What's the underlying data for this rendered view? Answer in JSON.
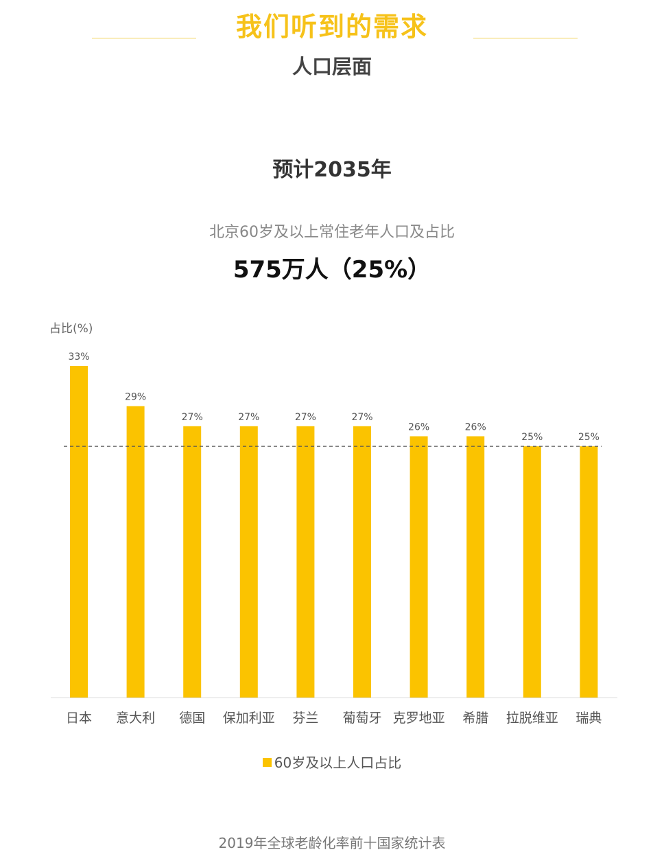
{
  "header": {
    "title": "我们听到的需求",
    "subtitle": "人口层面"
  },
  "forecast_label": "预计2035年",
  "stat": {
    "label": "北京60岁及以上常住老年人口及占比",
    "value": "575万人（25%）"
  },
  "chart_data": {
    "type": "bar",
    "title": "",
    "ylabel": "占比(%)",
    "xlabel": "",
    "categories": [
      "日本",
      "意大利",
      "德国",
      "保加利亚",
      "芬兰",
      "葡萄牙",
      "克罗地亚",
      "希腊",
      "拉脱维亚",
      "瑞典"
    ],
    "series": [
      {
        "name": "60岁及以上人口占比",
        "values": [
          33,
          29,
          27,
          27,
          27,
          27,
          26,
          26,
          25,
          25
        ],
        "labels": [
          "33%",
          "29%",
          "27%",
          "27%",
          "27%",
          "27%",
          "26%",
          "26%",
          "25%",
          "25%"
        ],
        "color": "#fbc300"
      }
    ],
    "reference_line": {
      "value": 25,
      "style": "dashed"
    },
    "ylim": [
      0,
      35
    ],
    "grid": false,
    "legend": "bottom"
  },
  "source_note": "2019年全球老龄化率前十国家统计表"
}
